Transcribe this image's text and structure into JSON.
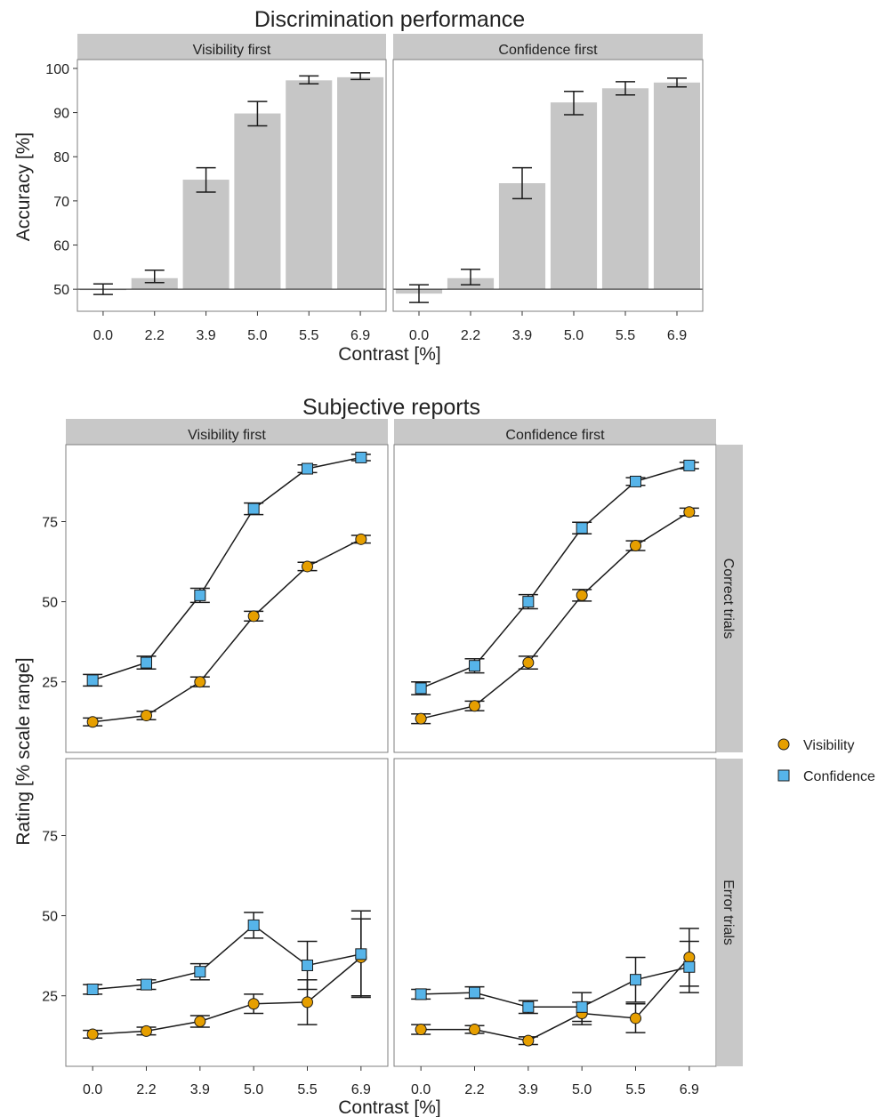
{
  "colors": {
    "bar": "#c6c6c6",
    "strip": "#c8c8c8",
    "visibility": "#e69f00",
    "confidence": "#56b4e9",
    "line": "#1a1a1a"
  },
  "chart_data": [
    {
      "type": "bar",
      "title": "Discrimination performance",
      "xlabel": "Contrast [%]",
      "ylabel": "Accuracy [%]",
      "categories": [
        "0.0",
        "2.2",
        "3.9",
        "5.0",
        "5.5",
        "6.9"
      ],
      "ylim": [
        45,
        102
      ],
      "yticks": [
        "50",
        "60",
        "70",
        "80",
        "90",
        "100"
      ],
      "reference_line": 50,
      "panels": [
        {
          "name": "Visibility first",
          "values": [
            49.8,
            52.5,
            74.8,
            89.8,
            97.3,
            98.0
          ],
          "err_low": [
            48.8,
            51.5,
            72.0,
            87.0,
            96.5,
            97.5
          ],
          "err_high": [
            51.2,
            54.3,
            77.5,
            92.5,
            98.3,
            99.0
          ]
        },
        {
          "name": "Confidence first",
          "values": [
            49.0,
            52.5,
            74.0,
            92.3,
            95.5,
            96.8
          ],
          "err_low": [
            47.0,
            51.0,
            70.5,
            89.5,
            94.0,
            95.8
          ],
          "err_high": [
            51.0,
            54.5,
            77.5,
            94.8,
            97.0,
            97.8
          ]
        }
      ]
    },
    {
      "type": "line",
      "title": "Subjective reports",
      "xlabel": "Contrast [%]",
      "ylabel": "Rating [% scale range]",
      "categories": [
        "0.0",
        "2.2",
        "3.9",
        "5.0",
        "5.5",
        "6.9"
      ],
      "ylim": [
        3,
        99
      ],
      "yticks": [
        "25",
        "50",
        "75"
      ],
      "columns": [
        "Visibility first",
        "Confidence first"
      ],
      "rows": [
        "Correct trials",
        "Error trials"
      ],
      "legend": {
        "position": "right",
        "entries": [
          "Visibility",
          "Confidence"
        ]
      },
      "panels": [
        {
          "column": "Visibility first",
          "row": "Correct trials",
          "series": [
            {
              "name": "Visibility",
              "values": [
                12.5,
                14.5,
                25.0,
                45.5,
                61.0,
                69.5
              ],
              "err": [
                1.2,
                1.3,
                1.5,
                1.5,
                1.3,
                1.2
              ]
            },
            {
              "name": "Confidence",
              "values": [
                25.5,
                31.0,
                52.0,
                79.0,
                91.5,
                95.0
              ],
              "err": [
                1.8,
                2.0,
                2.2,
                1.8,
                1.2,
                1.0
              ]
            }
          ]
        },
        {
          "column": "Confidence first",
          "row": "Correct trials",
          "series": [
            {
              "name": "Visibility",
              "values": [
                13.5,
                17.5,
                31.0,
                52.0,
                67.5,
                78.0
              ],
              "err": [
                1.5,
                1.5,
                2.0,
                1.8,
                1.5,
                1.2
              ]
            },
            {
              "name": "Confidence",
              "values": [
                23.0,
                30.0,
                50.0,
                73.0,
                87.5,
                92.5
              ],
              "err": [
                2.0,
                2.2,
                2.2,
                1.8,
                1.2,
                1.0
              ]
            }
          ]
        },
        {
          "column": "Visibility first",
          "row": "Error trials",
          "series": [
            {
              "name": "Visibility",
              "values": [
                13.0,
                14.0,
                17.0,
                22.5,
                23.0,
                37.0
              ],
              "err": [
                1.2,
                1.2,
                1.8,
                3.0,
                7.0,
                12.0
              ]
            },
            {
              "name": "Confidence",
              "values": [
                27.0,
                28.5,
                32.5,
                47.0,
                34.5,
                38.0
              ],
              "err": [
                1.5,
                1.5,
                2.5,
                4.0,
                7.5,
                13.5
              ]
            }
          ]
        },
        {
          "column": "Confidence first",
          "row": "Error trials",
          "series": [
            {
              "name": "Visibility",
              "values": [
                14.5,
                14.5,
                11.0,
                19.5,
                18.0,
                37.0
              ],
              "err": [
                1.5,
                1.2,
                1.2,
                3.5,
                4.5,
                9.0
              ]
            },
            {
              "name": "Confidence",
              "values": [
                25.5,
                26.0,
                21.5,
                21.5,
                30.0,
                34.0
              ],
              "err": [
                1.5,
                1.8,
                2.0,
                4.5,
                7.0,
                8.0
              ]
            }
          ]
        }
      ]
    }
  ]
}
